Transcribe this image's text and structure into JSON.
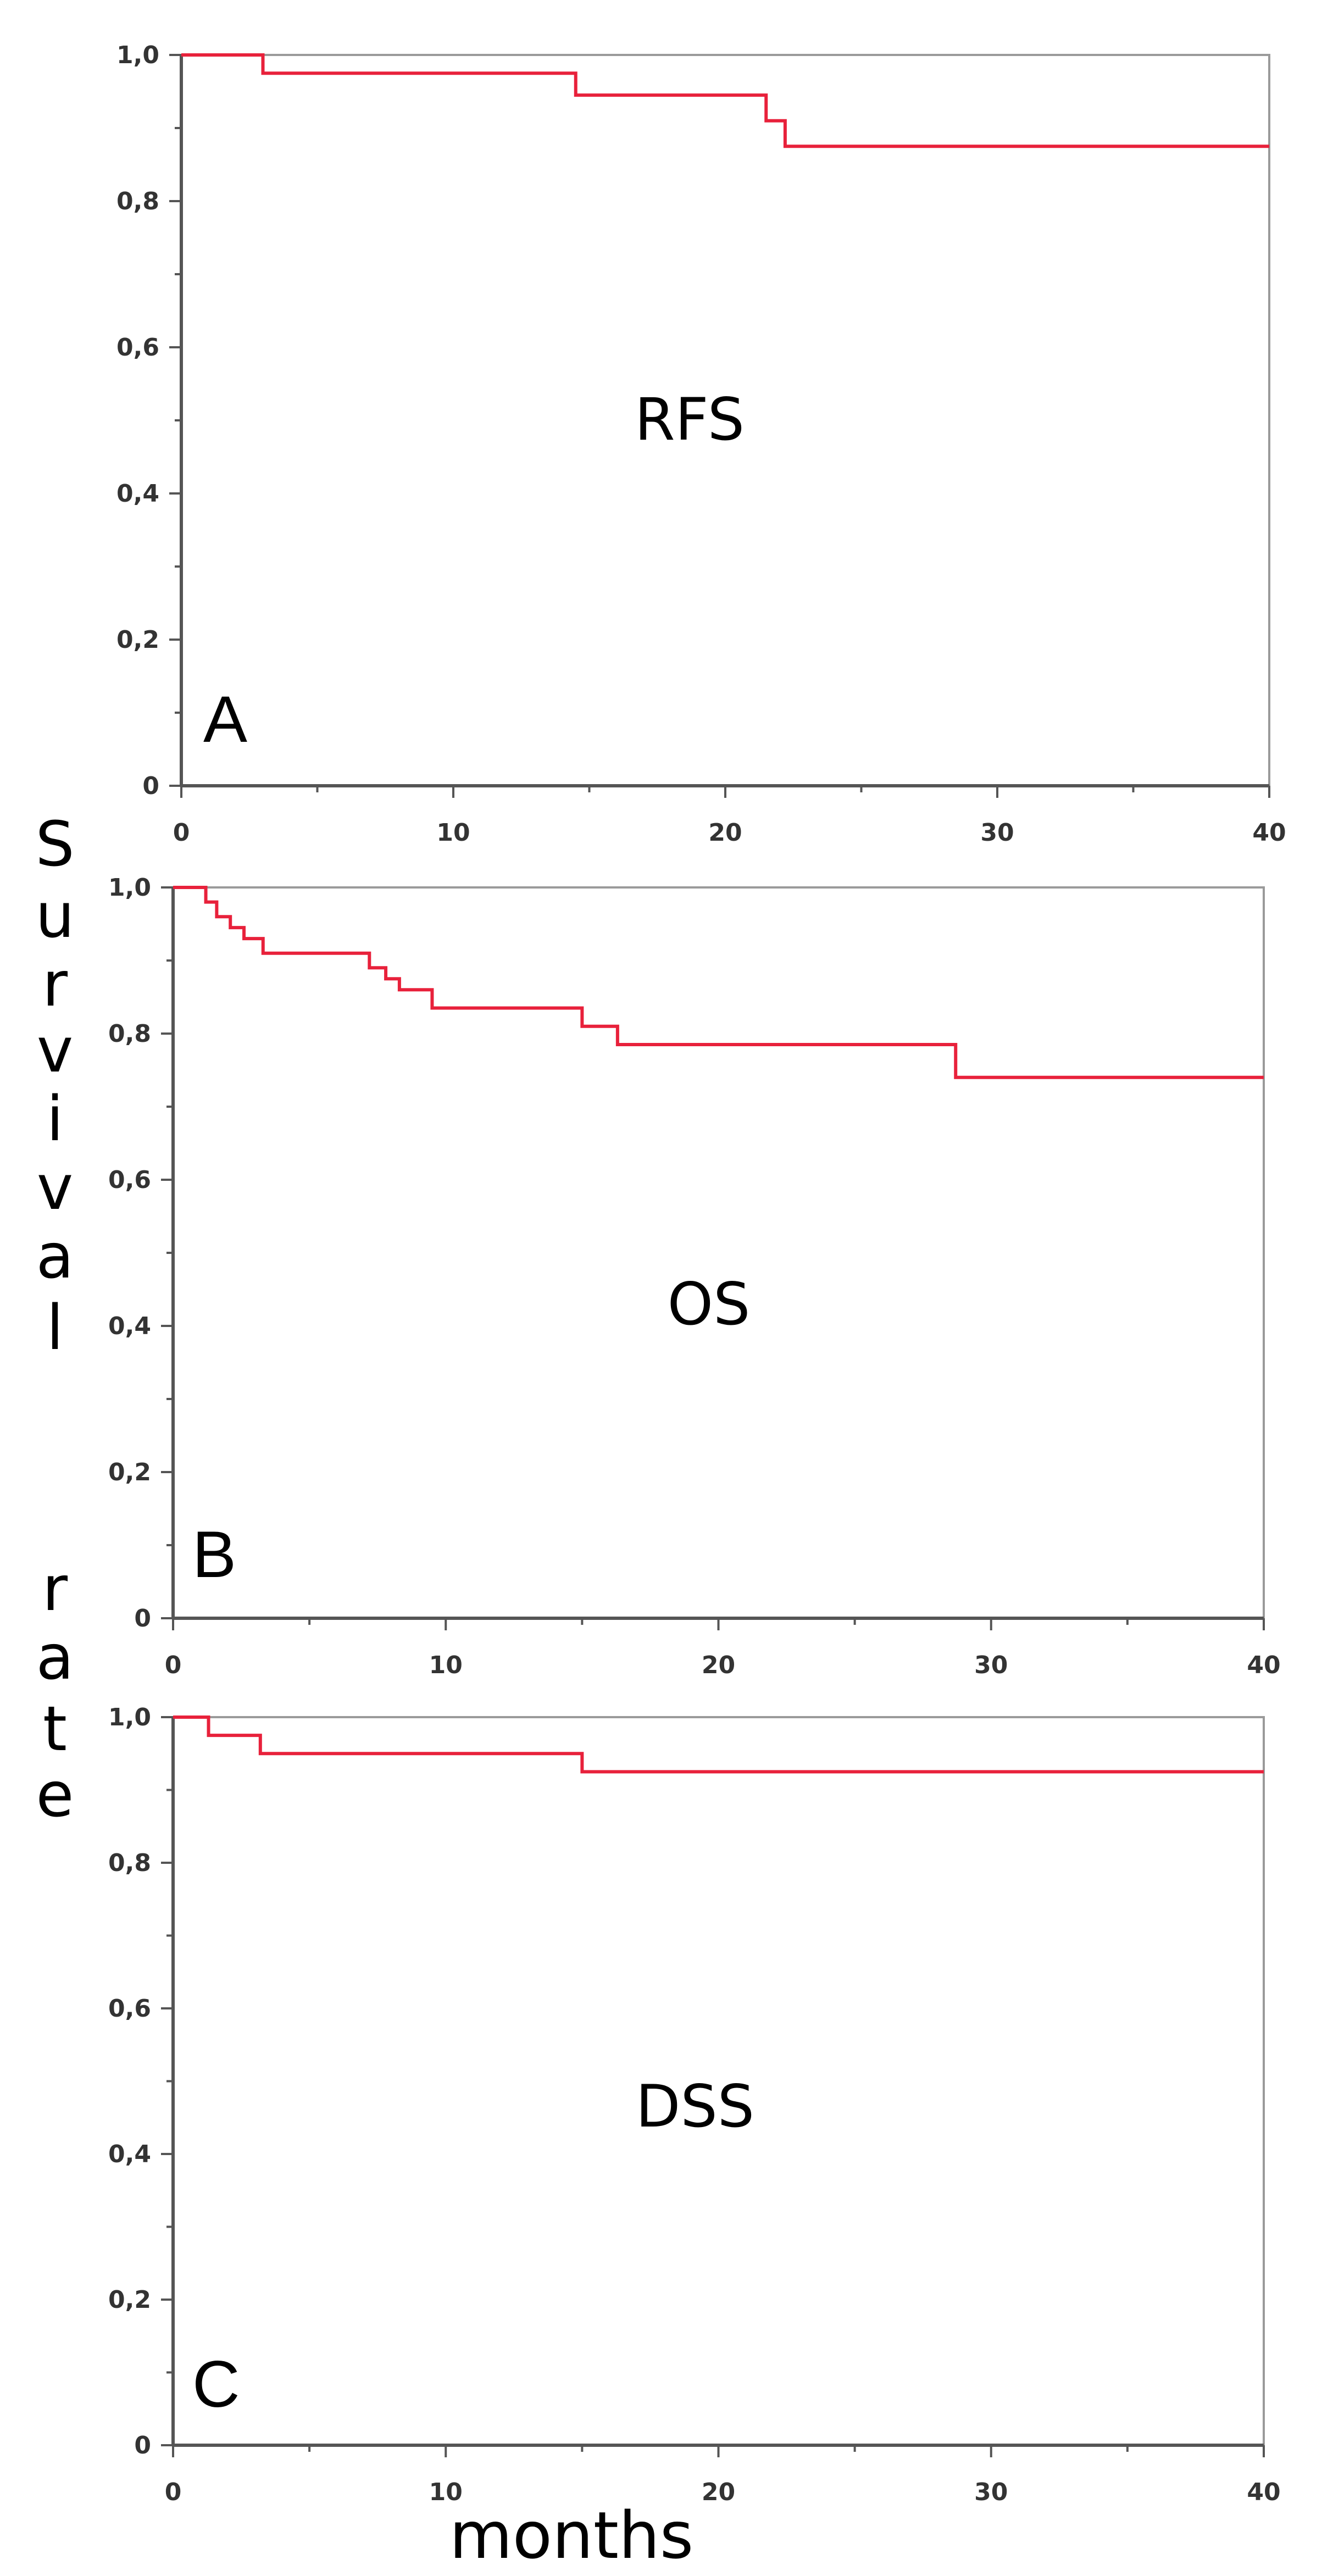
{
  "figure": {
    "ylabel_letters": [
      "S",
      "u",
      "r",
      "v",
      "i",
      "v",
      "a",
      "l",
      "r",
      "a",
      "t",
      "e"
    ],
    "xlabel": "months"
  },
  "colors": {
    "curve": "#e8213b",
    "axis": "#555555",
    "frame": "#9a9a9a",
    "text": "#000000"
  },
  "chart_data": [
    {
      "type": "line",
      "panel_letter": "A",
      "label": "RFS",
      "xlim": [
        0,
        40
      ],
      "ylim": [
        0,
        1
      ],
      "x_ticks": [
        "0",
        "10",
        "20",
        "30",
        "40"
      ],
      "y_ticks": [
        "0",
        "0,2",
        "0,4",
        "0,6",
        "0,8",
        "1,0"
      ],
      "series": [
        {
          "x": [
            0,
            3,
            14.5,
            21.5,
            22.2,
            40
          ],
          "y": [
            1.0,
            0.975,
            0.945,
            0.91,
            0.875,
            0.875
          ]
        }
      ]
    },
    {
      "type": "line",
      "panel_letter": "B",
      "label": "OS",
      "xlim": [
        0,
        40
      ],
      "ylim": [
        0,
        1
      ],
      "x_ticks": [
        "0",
        "10",
        "20",
        "30",
        "40"
      ],
      "y_ticks": [
        "0",
        "0,2",
        "0,4",
        "0,6",
        "0,8",
        "1,0"
      ],
      "series": [
        {
          "x": [
            0,
            1.2,
            1.6,
            2.1,
            2.6,
            3.3,
            7.2,
            7.8,
            8.3,
            9.5,
            15.0,
            16.3,
            28.7,
            40
          ],
          "y": [
            1.0,
            0.98,
            0.96,
            0.945,
            0.93,
            0.91,
            0.89,
            0.875,
            0.86,
            0.835,
            0.81,
            0.785,
            0.74,
            0.74
          ]
        }
      ]
    },
    {
      "type": "line",
      "panel_letter": "C",
      "label": "DSS",
      "xlim": [
        0,
        40
      ],
      "ylim": [
        0,
        1
      ],
      "x_ticks": [
        "0",
        "10",
        "20",
        "30",
        "40"
      ],
      "y_ticks": [
        "0",
        "0,2",
        "0,4",
        "0,6",
        "0,8",
        "1,0"
      ],
      "series": [
        {
          "x": [
            0,
            1.3,
            3.2,
            15.0,
            40
          ],
          "y": [
            1.0,
            0.975,
            0.95,
            0.925,
            0.925
          ]
        }
      ]
    }
  ]
}
